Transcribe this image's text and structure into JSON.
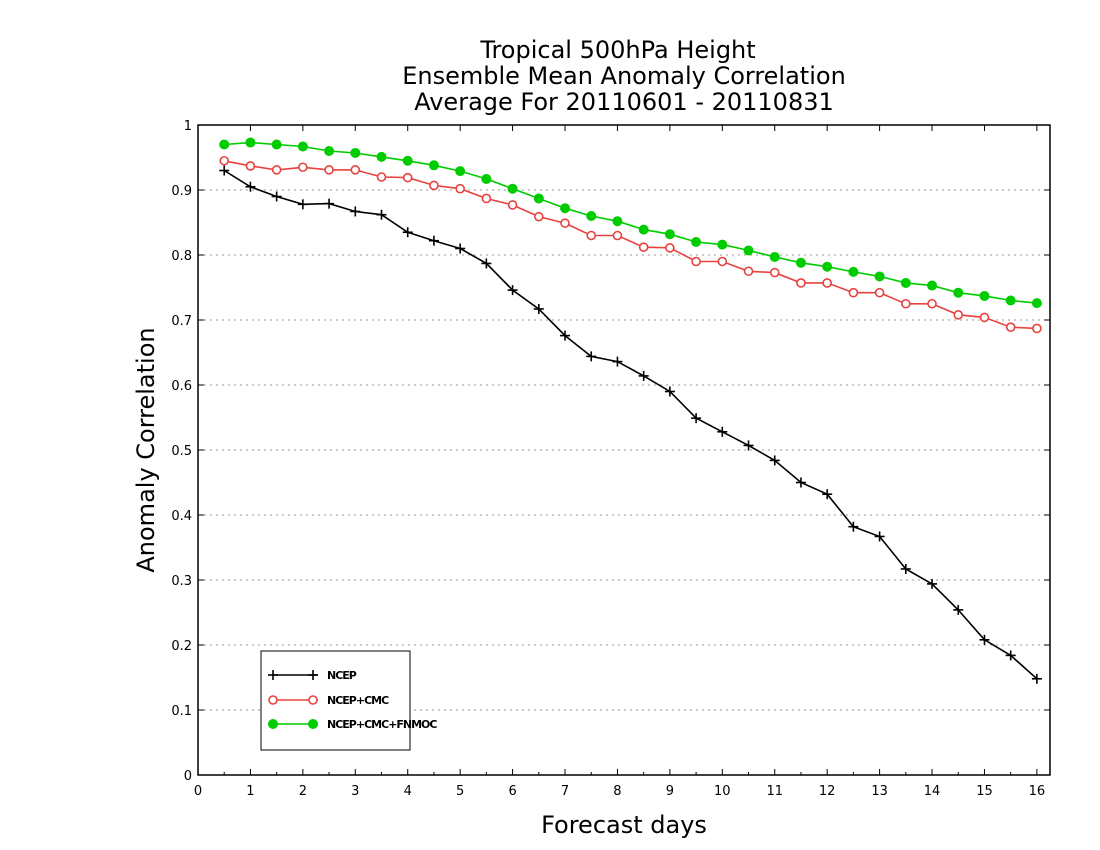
{
  "chart_data": {
    "type": "line",
    "title": [
      "Tropical 500hPa Height",
      "Ensemble Mean Anomaly Correlation",
      "Average For 20110601 - 20110831"
    ],
    "xlabel": "Forecast days",
    "ylabel": "Anomaly Correlation",
    "xlim": [
      0,
      16.25
    ],
    "ylim": [
      0,
      1
    ],
    "xticks": [
      0,
      1,
      2,
      3,
      4,
      5,
      6,
      7,
      8,
      9,
      10,
      11,
      12,
      13,
      14,
      15,
      16
    ],
    "xtick_labels": [
      "0",
      "1",
      "2",
      "3",
      "4",
      "5",
      "6",
      "7",
      "8",
      "9",
      "10",
      "11",
      "12",
      "13",
      "14",
      "15",
      "16"
    ],
    "yticks": [
      0,
      0.1,
      0.2,
      0.3,
      0.4,
      0.5,
      0.6,
      0.7,
      0.8,
      0.9,
      1
    ],
    "ytick_labels": [
      "0",
      "0.1",
      "0.2",
      "0.3",
      "0.4",
      "0.5",
      "0.6",
      "0.7",
      "0.8",
      "0.9",
      "1"
    ],
    "grid": "horizontal dotted",
    "legend_position": "bottom-left",
    "x": [
      0.5,
      1,
      1.5,
      2,
      2.5,
      3,
      3.5,
      4,
      4.5,
      5,
      5.5,
      6,
      6.5,
      7,
      7.5,
      8,
      8.5,
      9,
      9.5,
      10,
      10.5,
      11,
      11.5,
      12,
      12.5,
      13,
      13.5,
      14,
      14.5,
      15,
      15.5,
      16
    ],
    "series": [
      {
        "name": "NCEP",
        "color": "#000000",
        "marker": "plus",
        "values": [
          0.93,
          0.905,
          0.89,
          0.878,
          0.879,
          0.867,
          0.862,
          0.835,
          0.822,
          0.81,
          0.787,
          0.746,
          0.717,
          0.676,
          0.644,
          0.636,
          0.614,
          0.59,
          0.549,
          0.528,
          0.507,
          0.484,
          0.45,
          0.432,
          0.382,
          0.367,
          0.317,
          0.294,
          0.254,
          0.208,
          0.184,
          0.148
        ]
      },
      {
        "name": "NCEP+CMC",
        "color": "#e8423f",
        "marker": "open-circle",
        "values": [
          0.945,
          0.937,
          0.931,
          0.935,
          0.931,
          0.931,
          0.92,
          0.919,
          0.907,
          0.902,
          0.887,
          0.877,
          0.859,
          0.849,
          0.83,
          0.83,
          0.812,
          0.811,
          0.79,
          0.79,
          0.775,
          0.773,
          0.757,
          0.757,
          0.742,
          0.742,
          0.725,
          0.725,
          0.708,
          0.704,
          0.689,
          0.687
        ]
      },
      {
        "name": "NCEP+CMC+FNMOC",
        "color": "#00cc00",
        "marker": "filled-circle",
        "values": [
          0.97,
          0.973,
          0.97,
          0.967,
          0.96,
          0.957,
          0.951,
          0.945,
          0.938,
          0.929,
          0.917,
          0.902,
          0.887,
          0.872,
          0.86,
          0.852,
          0.839,
          0.832,
          0.82,
          0.816,
          0.807,
          0.797,
          0.788,
          0.782,
          0.774,
          0.767,
          0.757,
          0.753,
          0.742,
          0.737,
          0.73,
          0.726
        ]
      }
    ]
  }
}
